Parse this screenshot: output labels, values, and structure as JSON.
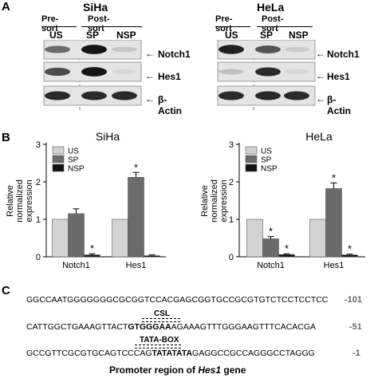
{
  "panel_a": {
    "letter": "A",
    "siha": {
      "cell_line": "SiHa",
      "group_pre": "Pre-sort",
      "group_post": "Post-sort",
      "lanes": [
        "US",
        "SP",
        "NSP"
      ],
      "blots": [
        "Notch1",
        "Hes1",
        "β-Actin"
      ],
      "band_intensity": {
        "Notch1": [
          0.55,
          0.95,
          0.12
        ],
        "Hes1": [
          0.7,
          0.95,
          0.05
        ],
        "β-Actin": [
          0.85,
          0.85,
          0.85
        ]
      }
    },
    "hela": {
      "cell_line": "HeLa",
      "group_pre": "Pre-sort",
      "group_post": "Post-sort",
      "lanes": [
        "US",
        "SP",
        "NSP"
      ],
      "blots": [
        "Notch1",
        "Hes1",
        "β-Actin"
      ],
      "band_intensity": {
        "Notch1": [
          0.9,
          0.65,
          0.1
        ],
        "Hes1": [
          0.15,
          0.85,
          0.05
        ],
        "β-Actin": [
          0.85,
          0.85,
          0.85
        ]
      }
    }
  },
  "panel_b": {
    "letter": "B",
    "ylabel": "Relative normalized expression",
    "ylabel_line1": "Relative",
    "ylabel_line2": "normalized",
    "ylabel_line3": "expression"
  },
  "chart_data": [
    {
      "type": "bar",
      "title": "SiHa",
      "categories": [
        "Notch1",
        "Hes1"
      ],
      "series": [
        {
          "name": "US",
          "values": [
            1.0,
            1.0
          ],
          "errors": [
            0,
            0
          ],
          "color": "#d3d3d3"
        },
        {
          "name": "SP",
          "values": [
            1.15,
            2.12
          ],
          "errors": [
            0.13,
            0.13
          ],
          "color": "#6b6b6b"
        },
        {
          "name": "NSP",
          "values": [
            0.05,
            0.03
          ],
          "errors": [
            0.03,
            0.02
          ],
          "color": "#111111"
        }
      ],
      "significance": [
        [
          false,
          false,
          true
        ],
        [
          false,
          true,
          false
        ]
      ],
      "ylabel": "Relative normalized expression",
      "yticks": [
        0,
        1,
        2,
        3
      ],
      "ylim": [
        0,
        3
      ],
      "legend": "top-left"
    },
    {
      "type": "bar",
      "title": "HeLa",
      "categories": [
        "Notch1",
        "Hes1"
      ],
      "series": [
        {
          "name": "US",
          "values": [
            1.0,
            1.0
          ],
          "errors": [
            0,
            0
          ],
          "color": "#d3d3d3"
        },
        {
          "name": "SP",
          "values": [
            0.48,
            1.82
          ],
          "errors": [
            0.06,
            0.15
          ],
          "color": "#6b6b6b"
        },
        {
          "name": "NSP",
          "values": [
            0.06,
            0.05
          ],
          "errors": [
            0.02,
            0.02
          ],
          "color": "#111111"
        }
      ],
      "significance": [
        [
          false,
          true,
          true
        ],
        [
          false,
          true,
          true
        ]
      ],
      "yticks": [
        0,
        1,
        2,
        3
      ],
      "ylim": [
        0,
        3
      ],
      "legend": "top-left"
    }
  ],
  "panel_c": {
    "letter": "C",
    "seq1": "GGCCAATGGGGGGGCGCGGTCCACGAGCGGTGCCGCGTGTCTCCTCCTCC",
    "pos1": "-101",
    "csl_label": "CSL",
    "seq2_pre": "CATTGGCTGAAAGTTACT",
    "seq2_bold": "GTGGGAA",
    "seq2_post": "AGAAAGTTTGGGAAGTTTCACACGA",
    "pos2": "-51",
    "tata_label": "TATA-BOX",
    "seq3_pre": "GCCGTTCGCGTGCAGTCCCAG",
    "seq3_bold": "TATATATA",
    "seq3_post": "GAGGCCGCCAGGGCCTAGGG",
    "pos3": "-1",
    "caption_pre": "Promoter region of ",
    "caption_gene": "Hes1",
    "caption_post": " gene"
  },
  "colors": {
    "us": "#d3d3d3",
    "sp": "#6b6b6b",
    "nsp": "#111111",
    "position_text": "#666666"
  }
}
